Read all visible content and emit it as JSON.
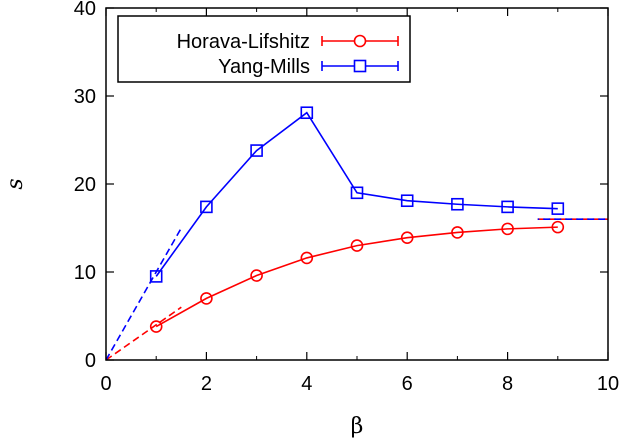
{
  "chart_data": {
    "type": "line",
    "xlabel": "β",
    "ylabel": "s",
    "xlim": [
      0,
      10
    ],
    "ylim": [
      0,
      40
    ],
    "xticks": [
      "0",
      "2",
      "4",
      "6",
      "8",
      "10"
    ],
    "yticks": [
      "0",
      "10",
      "20",
      "30",
      "40"
    ],
    "legend_position": "top-left",
    "grid": false,
    "series": [
      {
        "name": "Horava-Lifshitz",
        "color": "#ff0000",
        "marker": "circle",
        "x": [
          1,
          2,
          3,
          4,
          5,
          6,
          7,
          8,
          9
        ],
        "y": [
          3.8,
          7.0,
          9.6,
          11.6,
          13.0,
          13.9,
          14.5,
          14.9,
          15.1
        ]
      },
      {
        "name": "Yang-Mills",
        "color": "#0000ff",
        "marker": "square",
        "x": [
          1,
          2,
          3,
          4,
          5,
          6,
          7,
          8,
          9
        ],
        "y": [
          9.5,
          17.4,
          23.8,
          28.1,
          19.0,
          18.1,
          17.7,
          17.4,
          17.2
        ]
      }
    ],
    "reference_lines": [
      {
        "color": "#ff0000",
        "x": [
          0,
          1.5
        ],
        "y": [
          0,
          6.0
        ]
      },
      {
        "color": "#0000ff",
        "x": [
          0,
          1.5
        ],
        "y": [
          0,
          15.0
        ]
      },
      {
        "color": "#ff0000",
        "x": [
          8.6,
          10
        ],
        "y": [
          16,
          16
        ]
      },
      {
        "color": "#0000ff",
        "x": [
          8.6,
          10
        ],
        "y": [
          16,
          16
        ]
      }
    ]
  }
}
